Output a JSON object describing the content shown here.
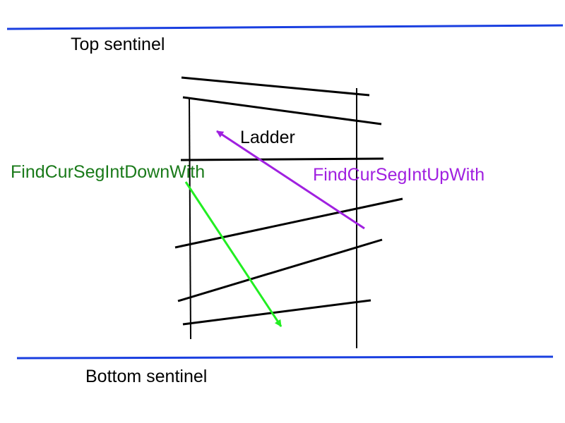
{
  "labels": {
    "top_sentinel": "Top sentinel",
    "bottom_sentinel": "Bottom sentinel",
    "ladder": "Ladder",
    "find_down": "FindCurSegIntDownWith",
    "find_up": "FindCurSegIntUpWith"
  },
  "colors": {
    "sentinel": "#1a3fe0",
    "segment": "#000000",
    "down_arrow": "#22ee22",
    "down_label": "#1a7a1a",
    "up_arrow": "#a020e0",
    "up_label": "#a020e0"
  }
}
